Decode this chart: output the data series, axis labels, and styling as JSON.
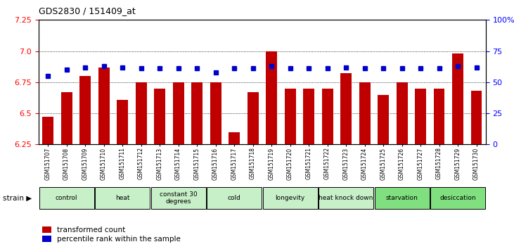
{
  "title": "GDS2830 / 151409_at",
  "samples": [
    "GSM151707",
    "GSM151708",
    "GSM151709",
    "GSM151710",
    "GSM151711",
    "GSM151712",
    "GSM151713",
    "GSM151714",
    "GSM151715",
    "GSM151716",
    "GSM151717",
    "GSM151718",
    "GSM151719",
    "GSM151720",
    "GSM151721",
    "GSM151722",
    "GSM151723",
    "GSM151724",
    "GSM151725",
    "GSM151726",
    "GSM151727",
    "GSM151728",
    "GSM151729",
    "GSM151730"
  ],
  "bar_values": [
    6.47,
    6.67,
    6.8,
    6.87,
    6.61,
    6.75,
    6.7,
    6.75,
    6.75,
    6.75,
    6.35,
    6.67,
    7.0,
    6.7,
    6.7,
    6.7,
    6.82,
    6.75,
    6.65,
    6.75,
    6.7,
    6.7,
    6.98,
    6.68
  ],
  "percentile_values": [
    55,
    60,
    62,
    63,
    62,
    61,
    61,
    61,
    61,
    58,
    61,
    61,
    63,
    61,
    61,
    61,
    62,
    61,
    61,
    61,
    61,
    61,
    63,
    62
  ],
  "groups": [
    {
      "label": "control",
      "start": 0,
      "end": 3,
      "color": "#c8f0c8"
    },
    {
      "label": "heat",
      "start": 3,
      "end": 6,
      "color": "#c8f0c8"
    },
    {
      "label": "constant 30\ndegrees",
      "start": 6,
      "end": 9,
      "color": "#c8f0c8"
    },
    {
      "label": "cold",
      "start": 9,
      "end": 12,
      "color": "#c8f0c8"
    },
    {
      "label": "longevity",
      "start": 12,
      "end": 15,
      "color": "#c8f0c8"
    },
    {
      "label": "heat knock down",
      "start": 15,
      "end": 18,
      "color": "#c8f0c8"
    },
    {
      "label": "starvation",
      "start": 18,
      "end": 21,
      "color": "#80e080"
    },
    {
      "label": "desiccation",
      "start": 21,
      "end": 24,
      "color": "#80e080"
    }
  ],
  "ylim_left": [
    6.25,
    7.25
  ],
  "ylim_right": [
    0,
    100
  ],
  "yticks_left": [
    6.25,
    6.5,
    6.75,
    7.0,
    7.25
  ],
  "yticks_right": [
    0,
    25,
    50,
    75,
    100
  ],
  "bar_color": "#c00000",
  "dot_color": "#0000cc",
  "bar_width": 0.6,
  "bar_bottom": 6.25
}
